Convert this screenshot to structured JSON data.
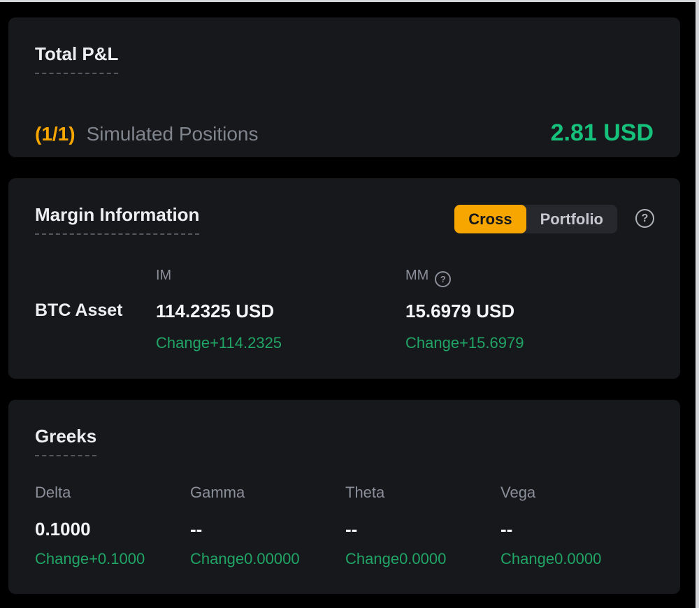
{
  "colors": {
    "background": "#000000",
    "panel_background": "#17181C",
    "accent_orange": "#F7A600",
    "change_green": "#21A566",
    "pnl_green": "#16C17B",
    "text_primary": "#ECEEEF",
    "text_secondary": "#8A8F99"
  },
  "icons": {
    "question_glyph": "?"
  },
  "total_pnl": {
    "title": "Total P&L",
    "positions_count": "(1/1)",
    "positions_label": "Simulated Positions",
    "value": "2.81 USD"
  },
  "margin_info": {
    "title": "Margin Information",
    "mode_toggle": {
      "cross_label": "Cross",
      "portfolio_label": "Portfolio",
      "selected": "Cross"
    },
    "asset_label": "BTC Asset",
    "im": {
      "header": "IM",
      "value": "114.2325 USD",
      "change": "Change+114.2325"
    },
    "mm": {
      "header": "MM",
      "value": "15.6979 USD",
      "change": "Change+15.6979"
    }
  },
  "greeks": {
    "title": "Greeks",
    "items": [
      {
        "label": "Delta",
        "value": "0.1000",
        "change": "Change+0.1000"
      },
      {
        "label": "Gamma",
        "value": "--",
        "change": "Change0.00000"
      },
      {
        "label": "Theta",
        "value": "--",
        "change": "Change0.0000"
      },
      {
        "label": "Vega",
        "value": "--",
        "change": "Change0.0000"
      }
    ]
  }
}
